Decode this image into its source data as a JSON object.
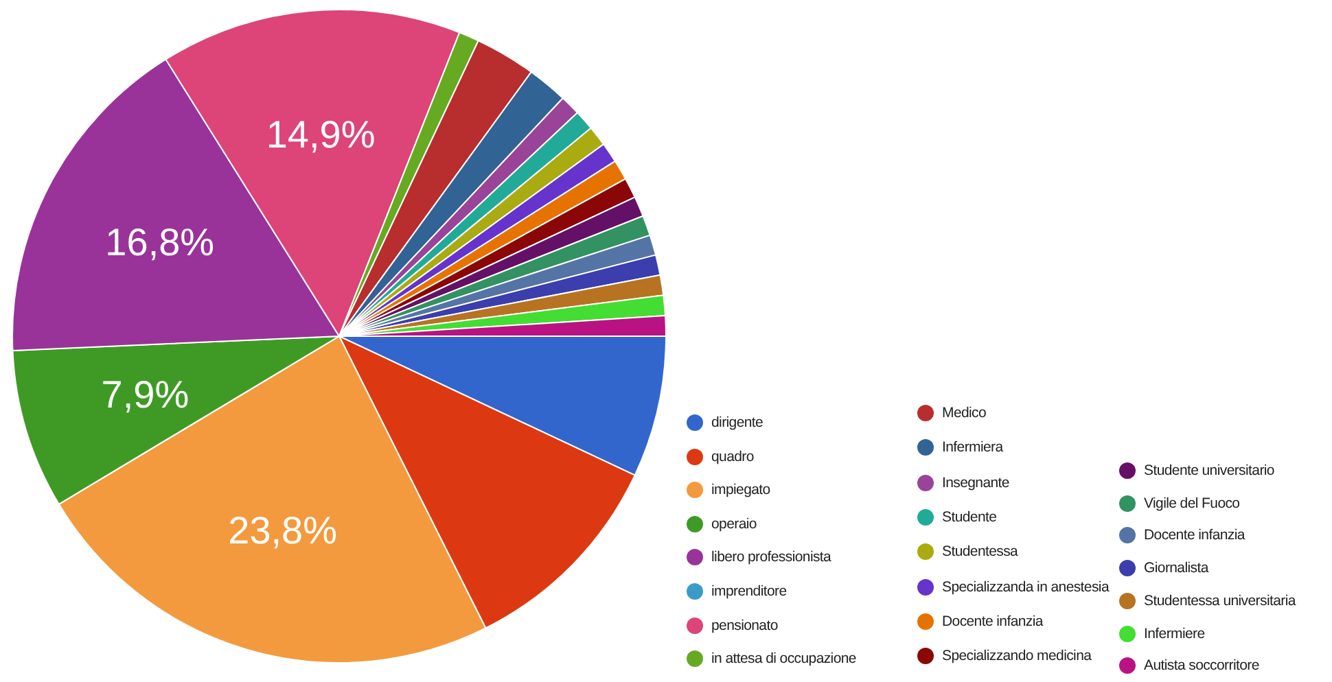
{
  "chart_data": {
    "type": "pie",
    "legend": "right",
    "categories": [
      "dirigente",
      "quadro",
      "impiegato",
      "operaio",
      "libero professionista",
      "imprenditore",
      "pensionato",
      "in attesa di occupazione",
      "Medico",
      "Infermiera",
      "Insegnante",
      "Studente",
      "Studentessa",
      "Specializzanda in anestesia",
      "Docente infanzia",
      "Specializzando medicina",
      "Studente universitario",
      "Vigile del Fuoco",
      "Docente infanzia",
      "Giornalista",
      "Studentessa universitaria",
      "Infermiere",
      "Autista soccorritore"
    ],
    "values": [
      7.0,
      10.6,
      23.8,
      7.9,
      16.8,
      0,
      14.9,
      1.0,
      3.0,
      2.0,
      1.0,
      1.0,
      1.0,
      1.0,
      1.0,
      1.0,
      1.0,
      1.0,
      1.0,
      1.0,
      1.0,
      1.0,
      1.0
    ],
    "colors": [
      "#3366cc",
      "#dc3912",
      "#f39a3e",
      "#3f9a25",
      "#993399",
      "#3a9bc8",
      "#dd4477",
      "#66aa22",
      "#b82e2e",
      "#316395",
      "#994499",
      "#22aa99",
      "#aaaa11",
      "#6633cc",
      "#e67300",
      "#8b0707",
      "#651067",
      "#329262",
      "#5574a6",
      "#3b3eac",
      "#b77322",
      "#44dd33",
      "#b91383"
    ],
    "value_labels": [
      null,
      null,
      "23,8%",
      "7,9%",
      "16,8%",
      null,
      "14,9%",
      null,
      null,
      null,
      null,
      null,
      null,
      null,
      null,
      null,
      null,
      null,
      null,
      null,
      null,
      null,
      null
    ]
  }
}
